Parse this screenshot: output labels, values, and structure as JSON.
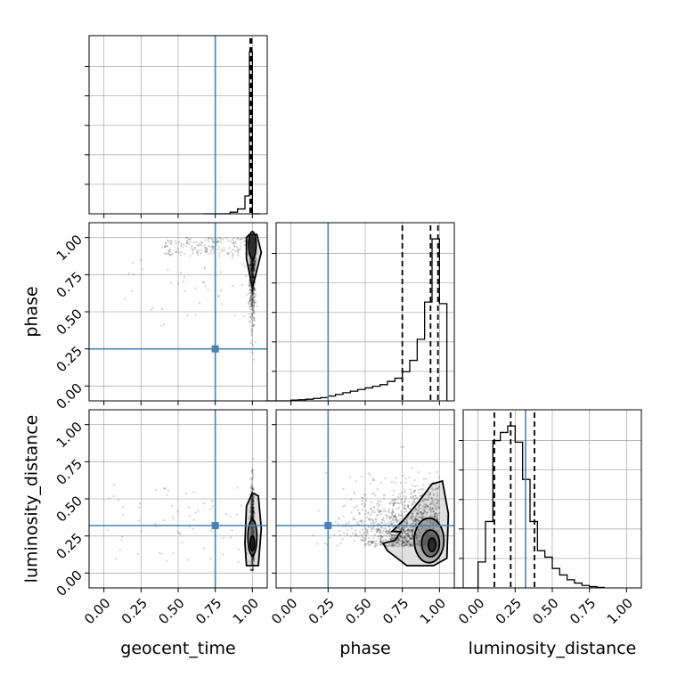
{
  "chart_data": {
    "type": "corner",
    "parameters": [
      "geocent_time",
      "phase",
      "luminosity_distance"
    ],
    "axis_labels": {
      "geocent_time": "geocent_time",
      "phase": "phase",
      "luminosity_distance": "luminosity_distance"
    },
    "tick_labels": [
      "0.00",
      "0.25",
      "0.50",
      "0.75",
      "1.00"
    ],
    "axis_range": {
      "geocent_time": [
        -0.1,
        1.1
      ],
      "phase": [
        -0.1,
        1.1
      ],
      "luminosity_distance": [
        -0.1,
        1.1
      ]
    },
    "truths": {
      "geocent_time": 0.75,
      "phase": 0.25,
      "luminosity_distance": 0.32
    },
    "quantiles": {
      "geocent_time": [
        0.985,
        0.99,
        0.995
      ],
      "phase": [
        0.75,
        0.94,
        0.99
      ],
      "luminosity_distance": [
        0.11,
        0.22,
        0.38
      ]
    },
    "histograms": {
      "geocent_time": {
        "bin_edges": [
          0.85,
          0.9,
          0.95,
          0.98,
          1.0,
          1.05
        ],
        "counts": [
          0.01,
          0.03,
          0.11,
          1.0,
          0.0
        ]
      },
      "phase": {
        "bin_edges": [
          0.0,
          0.05,
          0.1,
          0.15,
          0.2,
          0.25,
          0.3,
          0.35,
          0.4,
          0.45,
          0.5,
          0.55,
          0.6,
          0.65,
          0.7,
          0.75,
          0.8,
          0.85,
          0.9,
          0.95,
          1.0,
          1.05
        ],
        "counts": [
          0.005,
          0.007,
          0.01,
          0.015,
          0.02,
          0.03,
          0.04,
          0.05,
          0.06,
          0.07,
          0.08,
          0.09,
          0.1,
          0.12,
          0.14,
          0.18,
          0.25,
          0.38,
          0.61,
          1.0,
          0.6
        ]
      },
      "luminosity_distance": {
        "bin_edges": [
          0.0,
          0.05,
          0.1,
          0.15,
          0.2,
          0.25,
          0.3,
          0.35,
          0.4,
          0.45,
          0.5,
          0.55,
          0.6,
          0.65,
          0.7,
          0.75,
          0.8,
          0.85
        ],
        "counts": [
          0.16,
          0.41,
          0.91,
          0.96,
          1.0,
          0.9,
          0.67,
          0.41,
          0.23,
          0.19,
          0.12,
          0.08,
          0.05,
          0.03,
          0.015,
          0.008,
          0.003
        ]
      }
    },
    "grid": true
  }
}
